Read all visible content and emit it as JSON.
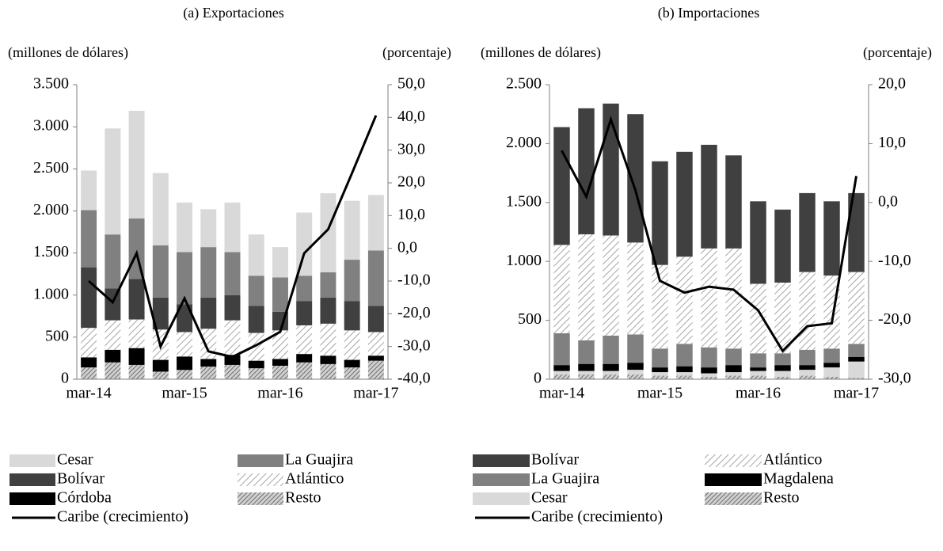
{
  "chart_data": [
    {
      "type": "bar",
      "title": "(a) Exportaciones",
      "ylabel": "(millones de dólares)",
      "y2label": "(porcentaje)",
      "categories": [
        "mar-14",
        null,
        null,
        null,
        "mar-15",
        null,
        null,
        null,
        "mar-16",
        null,
        null,
        null,
        "mar-17"
      ],
      "ylim": [
        0,
        3500
      ],
      "yticks": [
        {
          "value": 0,
          "label": "0"
        },
        {
          "value": 500,
          "label": "500"
        },
        {
          "value": 1000,
          "label": "1.000"
        },
        {
          "value": 1500,
          "label": "1.500"
        },
        {
          "value": 2000,
          "label": "2.000"
        },
        {
          "value": 2500,
          "label": "2.500"
        },
        {
          "value": 3000,
          "label": "3.000"
        },
        {
          "value": 3500,
          "label": "3.500"
        }
      ],
      "y2lim": [
        -40,
        50
      ],
      "y2ticks": [
        {
          "value": -40,
          "label": "-40,0"
        },
        {
          "value": -30,
          "label": "-30,0"
        },
        {
          "value": -20,
          "label": "-20,0"
        },
        {
          "value": -10,
          "label": "-10,0"
        },
        {
          "value": 0,
          "label": "0,0"
        },
        {
          "value": 10,
          "label": "10,0"
        },
        {
          "value": 20,
          "label": "20,0"
        },
        {
          "value": 30,
          "label": "30,0"
        },
        {
          "value": 40,
          "label": "40,0"
        },
        {
          "value": 50,
          "label": "50,0"
        }
      ],
      "stacked": true,
      "series": [
        {
          "name": "Cesar",
          "color": "#d9d9d9",
          "values": [
            470,
            1260,
            1280,
            860,
            590,
            450,
            590,
            490,
            360,
            750,
            940,
            700,
            660
          ]
        },
        {
          "name": "La Guajira",
          "color": "#808080",
          "values": [
            680,
            640,
            720,
            620,
            620,
            600,
            510,
            360,
            410,
            300,
            300,
            490,
            660
          ]
        },
        {
          "name": "Bolívar",
          "color": "#404040",
          "values": [
            720,
            380,
            480,
            380,
            330,
            370,
            300,
            320,
            220,
            290,
            310,
            350,
            310
          ]
        },
        {
          "name": "Atlántico",
          "color": "#a6a6a6",
          "pattern": "light-hatch",
          "values": [
            350,
            350,
            340,
            360,
            290,
            360,
            410,
            330,
            340,
            340,
            380,
            350,
            280
          ]
        },
        {
          "name": "Córdoba",
          "color": "#000000",
          "values": [
            120,
            150,
            200,
            140,
            160,
            90,
            120,
            90,
            80,
            100,
            100,
            90,
            60
          ]
        },
        {
          "name": "Resto",
          "color": "#808080",
          "pattern": "dense-hatch",
          "values": [
            140,
            200,
            170,
            90,
            110,
            150,
            170,
            130,
            160,
            200,
            180,
            140,
            220
          ]
        },
        {
          "name": "Caribe (crecimiento)",
          "type": "line",
          "axis": "y2",
          "color": "#000000",
          "values": [
            -10,
            -16.5,
            -1.5,
            -30,
            -15.3,
            -31.5,
            -33.2,
            -29.6,
            -25.5,
            -1.5,
            5.8,
            23,
            40.6
          ]
        }
      ]
    },
    {
      "type": "bar",
      "title": "(b) Importaciones",
      "ylabel": "(millones de dólares)",
      "y2label": "(porcentaje)",
      "categories": [
        "mar-14",
        null,
        null,
        null,
        "mar-15",
        null,
        null,
        null,
        "mar-16",
        null,
        null,
        null,
        "mar-17"
      ],
      "ylim": [
        0,
        2500
      ],
      "yticks": [
        {
          "value": 0,
          "label": "0"
        },
        {
          "value": 500,
          "label": "500"
        },
        {
          "value": 1000,
          "label": "1.000"
        },
        {
          "value": 1500,
          "label": "1.500"
        },
        {
          "value": 2000,
          "label": "2.000"
        },
        {
          "value": 2500,
          "label": "2.500"
        }
      ],
      "y2lim": [
        -30,
        20
      ],
      "y2ticks": [
        {
          "value": -30,
          "label": "-30,0"
        },
        {
          "value": -20,
          "label": "-20,0"
        },
        {
          "value": -10,
          "label": "-10,0"
        },
        {
          "value": 0,
          "label": "0,0"
        },
        {
          "value": 10,
          "label": "10,0"
        },
        {
          "value": 20,
          "label": "20,0"
        }
      ],
      "stacked": true,
      "series": [
        {
          "name": "Bolívar",
          "color": "#404040",
          "values": [
            1000,
            1070,
            1120,
            1090,
            880,
            890,
            880,
            790,
            700,
            620,
            670,
            630,
            670
          ]
        },
        {
          "name": "Atlántico",
          "color": "#a6a6a6",
          "pattern": "light-hatch",
          "values": [
            750,
            900,
            850,
            780,
            710,
            740,
            840,
            850,
            590,
            600,
            660,
            620,
            610
          ]
        },
        {
          "name": "La Guajira",
          "color": "#808080",
          "values": [
            270,
            200,
            240,
            240,
            160,
            190,
            170,
            140,
            120,
            100,
            130,
            120,
            110
          ]
        },
        {
          "name": "Magdalena",
          "color": "#000000",
          "values": [
            50,
            60,
            60,
            60,
            40,
            50,
            50,
            60,
            30,
            50,
            40,
            40,
            40
          ]
        },
        {
          "name": "Cesar",
          "color": "#d9d9d9",
          "values": [
            30,
            30,
            30,
            40,
            30,
            30,
            30,
            30,
            40,
            50,
            50,
            80,
            140
          ]
        },
        {
          "name": "Resto",
          "color": "#808080",
          "pattern": "dense-hatch",
          "values": [
            40,
            40,
            40,
            40,
            30,
            30,
            20,
            30,
            30,
            20,
            30,
            20,
            10
          ]
        },
        {
          "name": "Caribe (crecimiento)",
          "type": "line",
          "axis": "y2",
          "color": "#000000",
          "values": [
            8.8,
            1.0,
            14.1,
            2.1,
            -13.3,
            -15.3,
            -14.3,
            -14.8,
            -18.3,
            -25.2,
            -21,
            -20.5,
            4.5
          ]
        }
      ]
    }
  ]
}
